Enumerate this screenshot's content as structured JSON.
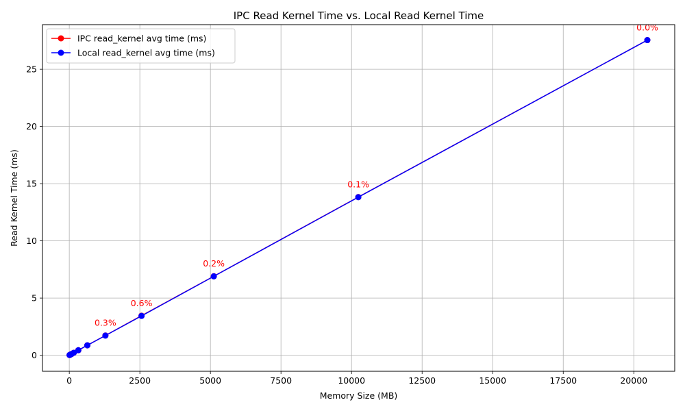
{
  "chart_data": {
    "type": "line",
    "title": "IPC Read Kernel Time vs. Local Read Kernel Time",
    "xlabel": "Memory Size (MB)",
    "ylabel": "Read Kernel Time (ms)",
    "xlim": [
      -950,
      21450
    ],
    "ylim": [
      -1.4,
      28.9
    ],
    "xticks": [
      0,
      2500,
      5000,
      7500,
      10000,
      12500,
      15000,
      17500,
      20000
    ],
    "xtick_labels": [
      "0",
      "2500",
      "5000",
      "7500",
      "10000",
      "12500",
      "15000",
      "17500",
      "20000"
    ],
    "yticks": [
      0,
      5,
      10,
      15,
      20,
      25
    ],
    "ytick_labels": [
      "0",
      "5",
      "10",
      "15",
      "20",
      "25"
    ],
    "grid": true,
    "legend_position": "top-left",
    "x": [
      10,
      20,
      40,
      80,
      160,
      320,
      640,
      1280,
      2560,
      5120,
      10240,
      20480
    ],
    "series": [
      {
        "name": "IPC read_kernel avg time (ms)",
        "color": "#ff0000",
        "values": [
          0.02,
          0.03,
          0.06,
          0.11,
          0.22,
          0.44,
          0.87,
          1.73,
          3.46,
          6.91,
          13.83,
          27.55
        ]
      },
      {
        "name": "Local read_kernel avg time (ms)",
        "color": "#0000ff",
        "values": [
          0.02,
          0.03,
          0.06,
          0.11,
          0.22,
          0.44,
          0.87,
          1.72,
          3.44,
          6.9,
          13.82,
          27.55
        ]
      }
    ],
    "annotations": [
      {
        "x": 1280,
        "y": 1.73,
        "text": "0.3%"
      },
      {
        "x": 2560,
        "y": 3.46,
        "text": "0.6%"
      },
      {
        "x": 5120,
        "y": 6.91,
        "text": "0.2%"
      },
      {
        "x": 10240,
        "y": 13.83,
        "text": "0.1%"
      },
      {
        "x": 20480,
        "y": 27.55,
        "text": "0.0%"
      }
    ],
    "annotation_color": "#ff0000"
  }
}
